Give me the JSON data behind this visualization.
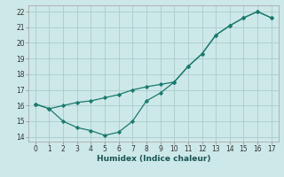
{
  "xlabel": "Humidex (Indice chaleur)",
  "bg_color": "#cde8e8",
  "grid_color": "#aacccc",
  "line_color": "#1a7a6e",
  "xlim": [
    -0.5,
    17.5
  ],
  "ylim": [
    13.7,
    22.4
  ],
  "xticks": [
    0,
    1,
    2,
    3,
    4,
    5,
    6,
    7,
    8,
    9,
    10,
    11,
    12,
    13,
    14,
    15,
    16,
    17
  ],
  "yticks": [
    14,
    15,
    16,
    17,
    18,
    19,
    20,
    21,
    22
  ],
  "series1_x": [
    0,
    1,
    2,
    3,
    4,
    5,
    6,
    7,
    8,
    9,
    10,
    11,
    12,
    13,
    14,
    15,
    16,
    17
  ],
  "series1_y": [
    16.1,
    15.8,
    16.0,
    16.2,
    16.3,
    16.5,
    16.7,
    17.0,
    17.2,
    17.35,
    17.5,
    18.5,
    19.3,
    20.5,
    21.1,
    21.6,
    22.0,
    21.6
  ],
  "series2_x": [
    0,
    1,
    2,
    3,
    4,
    5,
    6,
    7,
    8,
    9,
    10,
    11,
    12,
    13,
    14,
    15,
    16,
    17
  ],
  "series2_y": [
    16.1,
    15.8,
    15.0,
    14.6,
    14.4,
    14.1,
    14.3,
    15.0,
    16.3,
    16.8,
    17.5,
    18.5,
    19.3,
    20.5,
    21.1,
    21.6,
    22.0,
    21.6
  ]
}
